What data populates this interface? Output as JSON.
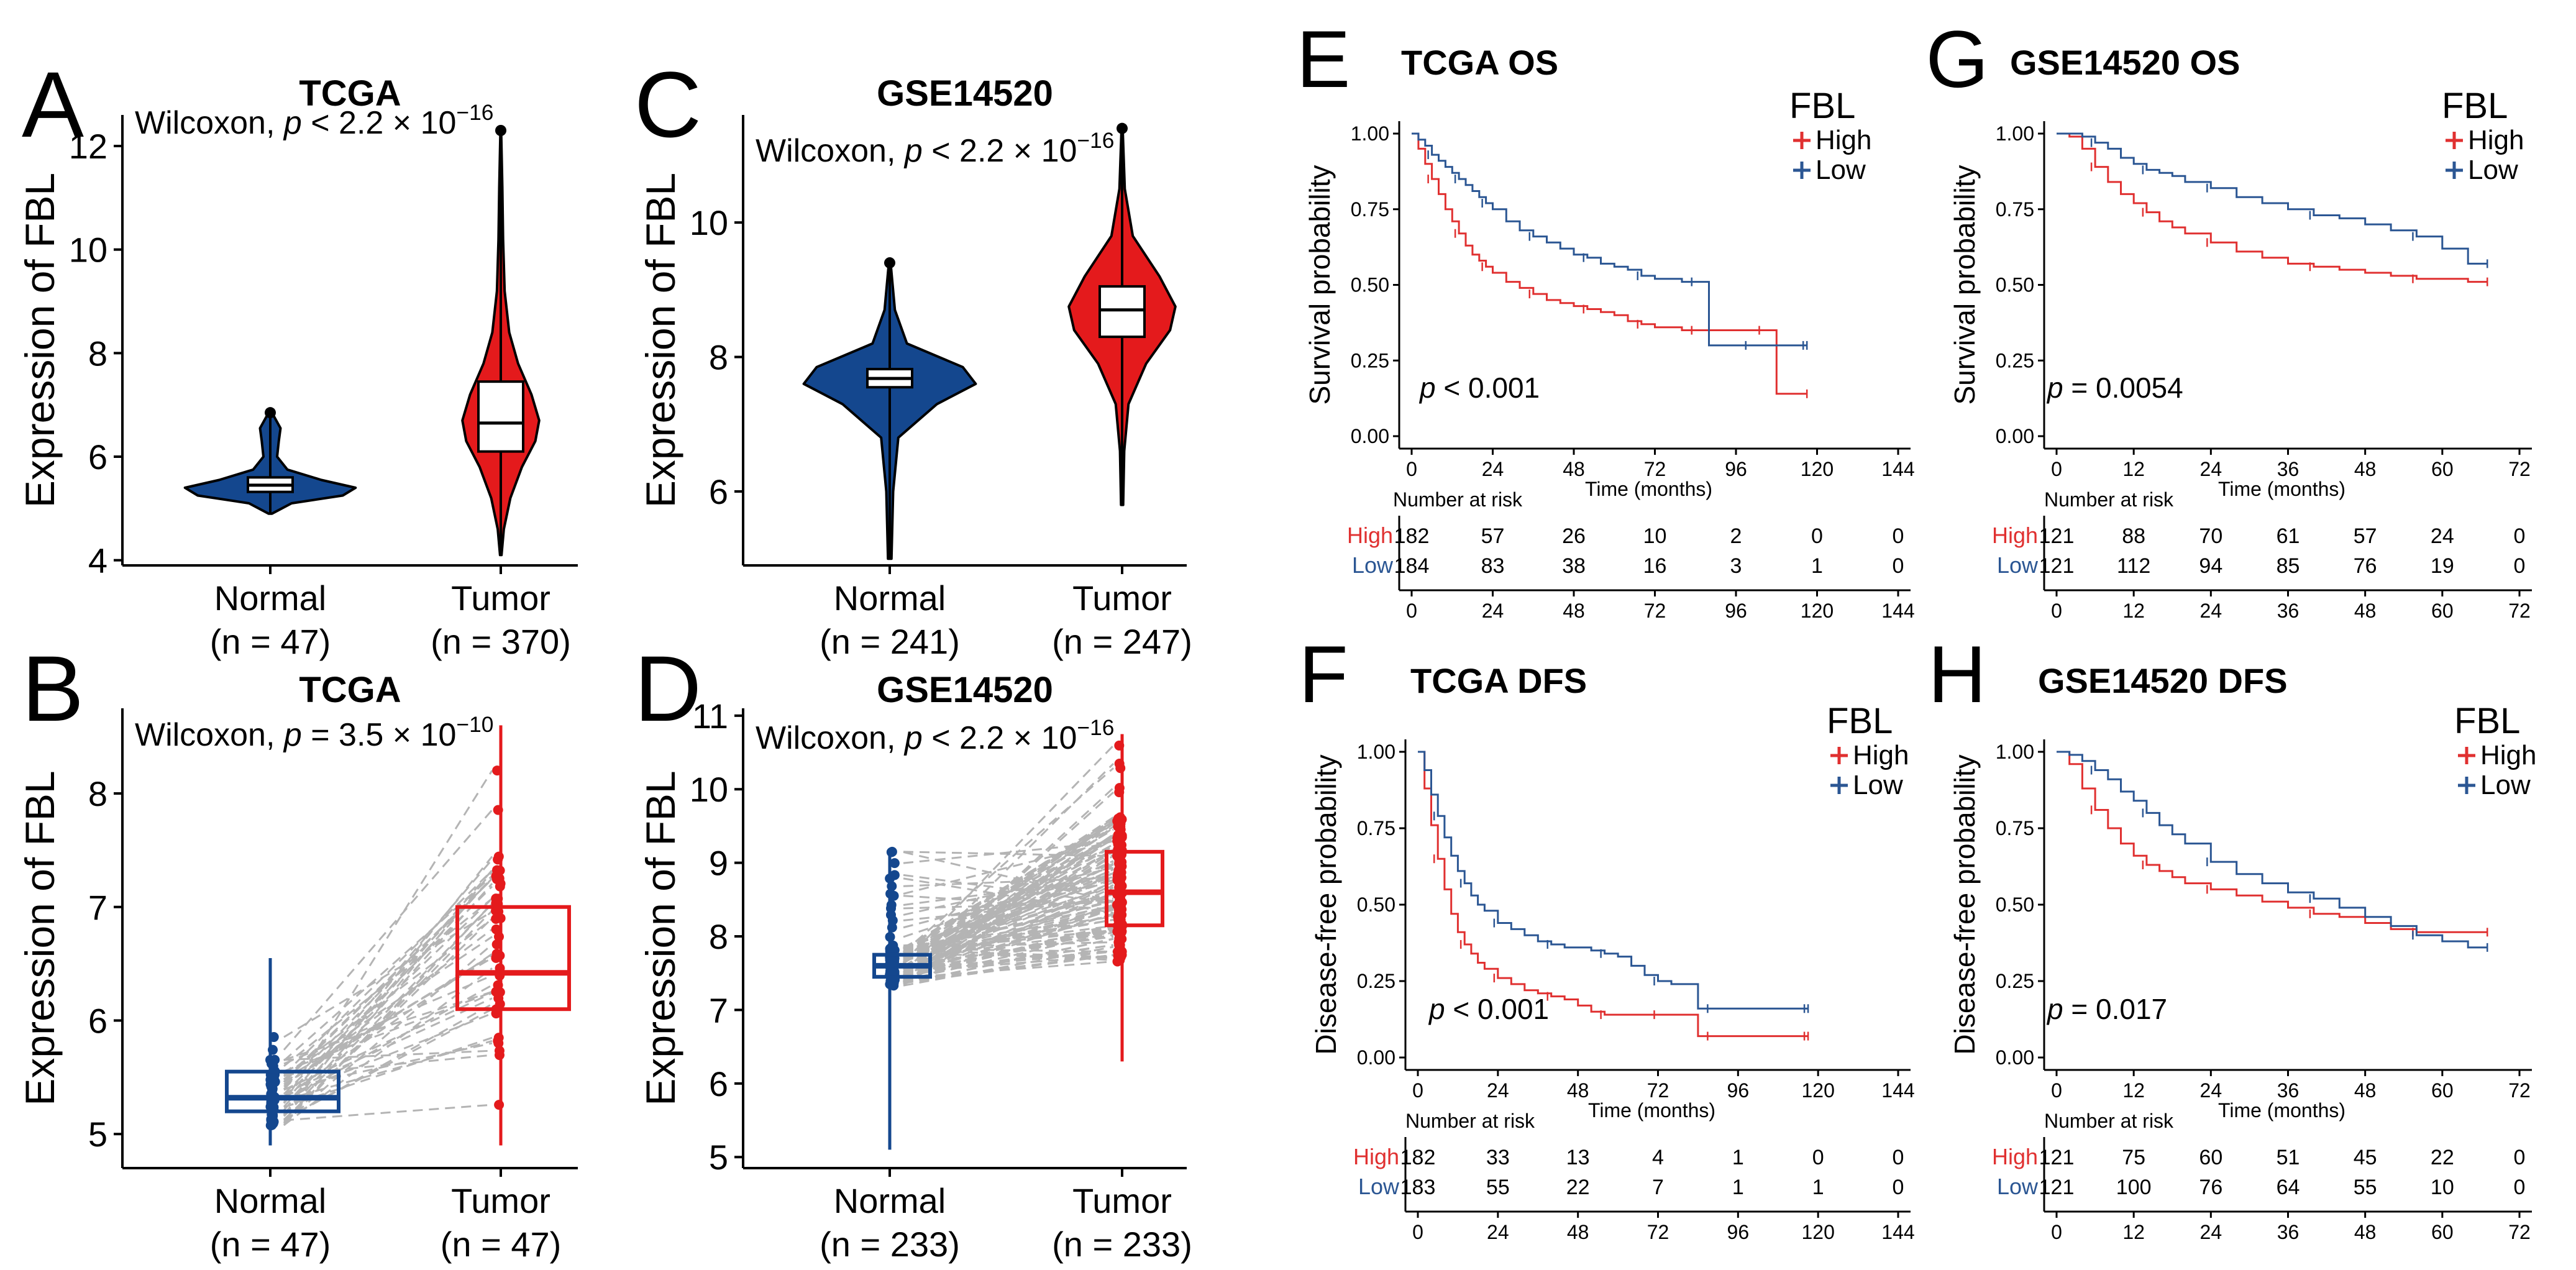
{
  "colors": {
    "normal": "#14478e",
    "tumor": "#e41a1c",
    "low": "#2b5693",
    "high": "#e03030",
    "paired_line": "#b4b4b4",
    "axis": "#000000"
  },
  "chart_data": [
    {
      "id": "A",
      "type": "violin",
      "title": "TCGA",
      "panel": "A",
      "test_prefix": "Wilcoxon, ",
      "p_var": "p",
      "p_rel": " < 2.2 × 10",
      "p_exp": "−16",
      "ylabel": "Expression  of  FBL",
      "ylim": [
        3.9,
        12.6
      ],
      "yticks": [
        4,
        6,
        8,
        10,
        12
      ],
      "groups": [
        {
          "name": "Normal",
          "n_label": "(n = 47)",
          "min": 4.9,
          "q1": 5.32,
          "median": 5.45,
          "q3": 5.6,
          "max": 6.85,
          "density": [
            [
              4.9,
              0.02
            ],
            [
              5.1,
              0.25
            ],
            [
              5.25,
              0.85
            ],
            [
              5.4,
              1.0
            ],
            [
              5.55,
              0.6
            ],
            [
              5.75,
              0.2
            ],
            [
              6.0,
              0.08
            ],
            [
              6.3,
              0.1
            ],
            [
              6.55,
              0.12
            ],
            [
              6.85,
              0.02
            ]
          ]
        },
        {
          "name": "Tumor",
          "n_label": "(n = 370)",
          "min": 4.1,
          "q1": 6.1,
          "median": 6.65,
          "q3": 7.45,
          "max": 12.3,
          "density": [
            [
              4.1,
              0.02
            ],
            [
              4.6,
              0.08
            ],
            [
              5.2,
              0.25
            ],
            [
              5.8,
              0.55
            ],
            [
              6.3,
              0.9
            ],
            [
              6.7,
              1.0
            ],
            [
              7.2,
              0.8
            ],
            [
              7.8,
              0.45
            ],
            [
              8.4,
              0.22
            ],
            [
              9.2,
              0.1
            ],
            [
              10.2,
              0.06
            ],
            [
              11.2,
              0.04
            ],
            [
              12.3,
              0.01
            ]
          ]
        }
      ]
    },
    {
      "id": "B",
      "type": "paired_box",
      "title": "TCGA",
      "panel": "B",
      "test_prefix": "Wilcoxon, ",
      "p_var": "p",
      "p_rel": " = 3.5 × 10",
      "p_exp": "−10",
      "ylabel": "Expression  of  FBL",
      "ylim": [
        4.7,
        8.75
      ],
      "yticks": [
        5,
        6,
        7,
        8
      ],
      "groups": [
        {
          "name": "Normal",
          "n_label": "(n = 47)",
          "min": 4.9,
          "q1": 5.2,
          "median": 5.32,
          "q3": 5.55,
          "max": 6.55
        },
        {
          "name": "Tumor",
          "n_label": "(n = 47)",
          "min": 4.9,
          "q1": 6.1,
          "median": 6.42,
          "q3": 7.0,
          "max": 8.6
        }
      ],
      "n_pairs": 47
    },
    {
      "id": "C",
      "type": "violin",
      "title": "GSE14520",
      "panel": "C",
      "test_prefix": "Wilcoxon, ",
      "p_var": "p",
      "p_rel": " < 2.2 × 10",
      "p_exp": "−16",
      "ylabel": "Expression  of  FBL",
      "ylim": [
        4.9,
        11.6
      ],
      "yticks": [
        6,
        8,
        10
      ],
      "groups": [
        {
          "name": "Normal",
          "n_label": "(n = 241)",
          "min": 5.0,
          "q1": 7.55,
          "median": 7.68,
          "q3": 7.82,
          "max": 9.4,
          "density": [
            [
              5.0,
              0.02
            ],
            [
              6.0,
              0.04
            ],
            [
              6.8,
              0.1
            ],
            [
              7.3,
              0.55
            ],
            [
              7.6,
              1.0
            ],
            [
              7.85,
              0.85
            ],
            [
              8.2,
              0.2
            ],
            [
              8.7,
              0.06
            ],
            [
              9.4,
              0.01
            ]
          ]
        },
        {
          "name": "Tumor",
          "n_label": "(n = 247)",
          "min": 5.8,
          "q1": 8.3,
          "median": 8.7,
          "q3": 9.05,
          "max": 11.4,
          "density": [
            [
              5.8,
              0.02
            ],
            [
              6.6,
              0.04
            ],
            [
              7.3,
              0.12
            ],
            [
              7.9,
              0.45
            ],
            [
              8.4,
              0.9
            ],
            [
              8.75,
              1.0
            ],
            [
              9.2,
              0.7
            ],
            [
              9.8,
              0.2
            ],
            [
              10.5,
              0.05
            ],
            [
              11.4,
              0.01
            ]
          ]
        }
      ]
    },
    {
      "id": "D",
      "type": "paired_box",
      "title": "GSE14520",
      "panel": "D",
      "test_prefix": "Wilcoxon, ",
      "p_var": "p",
      "p_rel": " < 2.2 × 10",
      "p_exp": "−16",
      "ylabel": "Expression  of  FBL",
      "ylim": [
        4.85,
        11.1
      ],
      "yticks": [
        5,
        6,
        7,
        8,
        9,
        10,
        11
      ],
      "groups": [
        {
          "name": "Normal",
          "n_label": "(n = 233)",
          "min": 5.1,
          "q1": 7.45,
          "median": 7.6,
          "q3": 7.75,
          "max": 9.15
        },
        {
          "name": "Tumor",
          "n_label": "(n = 233)",
          "min": 6.3,
          "q1": 8.15,
          "median": 8.6,
          "q3": 9.15,
          "max": 10.75
        }
      ],
      "n_pairs": 233
    },
    {
      "id": "E",
      "type": "km",
      "title": "TCGA OS",
      "panel": "E",
      "ylabel": "Survival probability",
      "xlabel": "Time (months)",
      "xlim": [
        0,
        144
      ],
      "xticks": [
        0,
        24,
        48,
        72,
        96,
        120,
        144
      ],
      "yticks": [
        0.0,
        0.25,
        0.5,
        0.75,
        1.0
      ],
      "ytick_labels": [
        "0.00",
        "0.25",
        "0.50",
        "0.75",
        "1.00"
      ],
      "legend_title": "FBL",
      "p_var": "p",
      "p_text": " < 0.001",
      "series": [
        {
          "name": "High",
          "times": [
            0,
            2,
            4,
            6,
            8,
            10,
            12,
            14,
            16,
            18,
            20,
            22,
            24,
            28,
            32,
            36,
            40,
            44,
            48,
            52,
            56,
            60,
            64,
            68,
            72,
            76,
            80,
            84,
            88,
            96,
            100,
            104,
            108,
            112,
            117
          ],
          "surv": [
            1.0,
            0.95,
            0.9,
            0.85,
            0.8,
            0.75,
            0.71,
            0.67,
            0.63,
            0.6,
            0.58,
            0.56,
            0.54,
            0.51,
            0.49,
            0.47,
            0.45,
            0.44,
            0.43,
            0.42,
            0.41,
            0.4,
            0.38,
            0.37,
            0.36,
            0.36,
            0.35,
            0.35,
            0.35,
            0.35,
            0.35,
            0.35,
            0.14,
            0.14,
            0.14
          ]
        },
        {
          "name": "Low",
          "times": [
            0,
            2,
            4,
            6,
            8,
            10,
            12,
            14,
            16,
            18,
            20,
            22,
            24,
            28,
            32,
            36,
            40,
            44,
            48,
            52,
            56,
            60,
            64,
            68,
            72,
            76,
            80,
            84,
            88,
            92,
            96,
            100,
            104,
            108,
            112,
            117
          ],
          "surv": [
            1.0,
            0.98,
            0.96,
            0.93,
            0.91,
            0.89,
            0.87,
            0.85,
            0.83,
            0.81,
            0.79,
            0.77,
            0.75,
            0.71,
            0.68,
            0.66,
            0.64,
            0.62,
            0.6,
            0.59,
            0.57,
            0.56,
            0.55,
            0.53,
            0.52,
            0.52,
            0.51,
            0.51,
            0.3,
            0.3,
            0.3,
            0.3,
            0.3,
            0.3,
            0.3,
            0.3
          ]
        }
      ],
      "risk_table": {
        "title": "Number at risk",
        "rows": [
          {
            "group": "High",
            "counts": [
              182,
              57,
              26,
              10,
              2,
              0,
              0
            ]
          },
          {
            "group": "Low",
            "counts": [
              184,
              83,
              38,
              16,
              3,
              1,
              0
            ]
          }
        ]
      }
    },
    {
      "id": "F",
      "type": "km",
      "title": "TCGA DFS",
      "panel": "F",
      "ylabel": "Disease-free probability",
      "xlabel": "Time (months)",
      "xlim": [
        0,
        144
      ],
      "xticks": [
        0,
        24,
        48,
        72,
        96,
        120,
        144
      ],
      "yticks": [
        0.0,
        0.25,
        0.5,
        0.75,
        1.0
      ],
      "ytick_labels": [
        "0.00",
        "0.25",
        "0.50",
        "0.75",
        "1.00"
      ],
      "legend_title": "FBL",
      "p_var": "p",
      "p_text": " < 0.001",
      "series": [
        {
          "name": "High",
          "times": [
            0,
            2,
            4,
            6,
            8,
            10,
            12,
            14,
            16,
            18,
            20,
            24,
            28,
            32,
            36,
            40,
            44,
            48,
            52,
            56,
            60,
            64,
            68,
            72,
            76,
            80,
            84,
            88,
            96,
            104,
            112,
            117
          ],
          "surv": [
            1.0,
            0.88,
            0.76,
            0.65,
            0.55,
            0.47,
            0.41,
            0.37,
            0.34,
            0.31,
            0.29,
            0.26,
            0.24,
            0.22,
            0.21,
            0.2,
            0.19,
            0.17,
            0.15,
            0.14,
            0.14,
            0.14,
            0.14,
            0.14,
            0.14,
            0.14,
            0.07,
            0.07,
            0.07,
            0.07,
            0.07,
            0.07
          ]
        },
        {
          "name": "Low",
          "times": [
            0,
            2,
            4,
            6,
            8,
            10,
            12,
            14,
            16,
            18,
            20,
            24,
            28,
            32,
            36,
            40,
            44,
            48,
            52,
            56,
            60,
            64,
            68,
            72,
            76,
            80,
            84,
            88,
            96,
            104,
            112,
            117
          ],
          "surv": [
            1.0,
            0.94,
            0.86,
            0.79,
            0.72,
            0.66,
            0.61,
            0.57,
            0.53,
            0.5,
            0.48,
            0.44,
            0.42,
            0.4,
            0.38,
            0.37,
            0.36,
            0.36,
            0.35,
            0.34,
            0.33,
            0.3,
            0.27,
            0.25,
            0.24,
            0.24,
            0.16,
            0.16,
            0.16,
            0.16,
            0.16,
            0.16
          ]
        }
      ],
      "risk_table": {
        "title": "Number at risk",
        "rows": [
          {
            "group": "High",
            "counts": [
              182,
              33,
              13,
              4,
              1,
              0,
              0
            ]
          },
          {
            "group": "Low",
            "counts": [
              183,
              55,
              22,
              7,
              1,
              1,
              0
            ]
          }
        ]
      }
    },
    {
      "id": "G",
      "type": "km",
      "title": "GSE14520 OS",
      "panel": "G",
      "ylabel": "Survival probability",
      "xlabel": "Time (months)",
      "xlim": [
        0,
        72
      ],
      "xticks": [
        0,
        12,
        24,
        36,
        48,
        60,
        72
      ],
      "yticks": [
        0.0,
        0.25,
        0.5,
        0.75,
        1.0
      ],
      "ytick_labels": [
        "0.00",
        "0.25",
        "0.50",
        "0.75",
        "1.00"
      ],
      "legend_title": "FBL",
      "p_var": "p",
      "p_text": " = 0.0054",
      "series": [
        {
          "name": "High",
          "times": [
            0,
            2,
            4,
            6,
            8,
            10,
            12,
            14,
            16,
            18,
            20,
            24,
            28,
            32,
            36,
            40,
            44,
            48,
            52,
            56,
            60,
            64,
            67
          ],
          "surv": [
            1.0,
            0.99,
            0.95,
            0.89,
            0.84,
            0.8,
            0.77,
            0.74,
            0.71,
            0.69,
            0.67,
            0.64,
            0.61,
            0.59,
            0.57,
            0.56,
            0.55,
            0.54,
            0.53,
            0.52,
            0.52,
            0.51,
            0.51
          ]
        },
        {
          "name": "Low",
          "times": [
            0,
            2,
            4,
            6,
            8,
            10,
            12,
            14,
            16,
            18,
            20,
            24,
            28,
            32,
            36,
            40,
            44,
            48,
            52,
            56,
            60,
            64,
            67
          ],
          "surv": [
            1.0,
            1.0,
            0.99,
            0.97,
            0.95,
            0.92,
            0.9,
            0.88,
            0.87,
            0.86,
            0.84,
            0.82,
            0.79,
            0.77,
            0.75,
            0.73,
            0.72,
            0.7,
            0.68,
            0.66,
            0.62,
            0.57,
            0.57
          ]
        }
      ],
      "risk_table": {
        "title": "Number at risk",
        "rows": [
          {
            "group": "High",
            "counts": [
              121,
              88,
              70,
              61,
              57,
              24,
              0
            ]
          },
          {
            "group": "Low",
            "counts": [
              121,
              112,
              94,
              85,
              76,
              19,
              0
            ]
          }
        ]
      }
    },
    {
      "id": "H",
      "type": "km",
      "title": "GSE14520 DFS",
      "panel": "H",
      "ylabel": "Disease-free probability",
      "xlabel": "Time (months)",
      "xlim": [
        0,
        72
      ],
      "xticks": [
        0,
        12,
        24,
        36,
        48,
        60,
        72
      ],
      "yticks": [
        0.0,
        0.25,
        0.5,
        0.75,
        1.0
      ],
      "ytick_labels": [
        "0.00",
        "0.25",
        "0.50",
        "0.75",
        "1.00"
      ],
      "legend_title": "FBL",
      "p_var": "p",
      "p_text": " = 0.017",
      "series": [
        {
          "name": "High",
          "times": [
            0,
            2,
            4,
            6,
            8,
            10,
            12,
            14,
            16,
            18,
            20,
            24,
            28,
            32,
            36,
            40,
            44,
            48,
            52,
            56,
            60,
            64,
            67
          ],
          "surv": [
            1.0,
            0.96,
            0.88,
            0.81,
            0.75,
            0.7,
            0.66,
            0.63,
            0.61,
            0.59,
            0.57,
            0.55,
            0.53,
            0.51,
            0.49,
            0.47,
            0.46,
            0.44,
            0.42,
            0.41,
            0.41,
            0.41,
            0.41
          ]
        },
        {
          "name": "Low",
          "times": [
            0,
            2,
            4,
            6,
            8,
            10,
            12,
            14,
            16,
            18,
            20,
            24,
            28,
            32,
            36,
            40,
            44,
            48,
            52,
            56,
            60,
            64,
            67
          ],
          "surv": [
            1.0,
            0.99,
            0.97,
            0.94,
            0.91,
            0.87,
            0.84,
            0.8,
            0.76,
            0.73,
            0.7,
            0.64,
            0.6,
            0.57,
            0.54,
            0.52,
            0.49,
            0.46,
            0.43,
            0.4,
            0.38,
            0.36,
            0.36
          ]
        }
      ],
      "risk_table": {
        "title": "Number at risk",
        "rows": [
          {
            "group": "High",
            "counts": [
              121,
              75,
              60,
              51,
              45,
              22,
              0
            ]
          },
          {
            "group": "Low",
            "counts": [
              121,
              100,
              76,
              64,
              55,
              10,
              0
            ]
          }
        ]
      }
    }
  ]
}
